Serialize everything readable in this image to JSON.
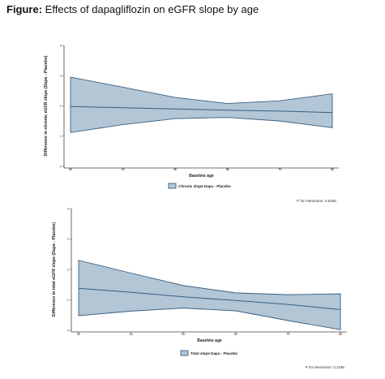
{
  "figure": {
    "title_bold": "Figure:",
    "title_rest": " Effects of dapagliflozin on eGFR slope by age"
  },
  "chart_data": [
    {
      "type": "line",
      "title": "",
      "xlabel": "Baseline age",
      "ylabel": "Difference in chronic eGFR slope (Dapa - Placebo)",
      "xlim": [
        30,
        80
      ],
      "ylim": [
        0,
        4
      ],
      "xticks": [
        "30",
        "40",
        "50",
        "60",
        "70",
        "80"
      ],
      "yticks": [
        "0",
        "1",
        "2",
        "3",
        "4"
      ],
      "grid": false,
      "legend": {
        "label": "Chronic slope Dapa - Placebo",
        "position": "bottom-center"
      },
      "annotation": "P for interaction: 0.6265",
      "series": [
        {
          "x": [
            30,
            40,
            50,
            60,
            70,
            80
          ],
          "estimate": [
            1.98,
            1.94,
            1.9,
            1.86,
            1.83,
            1.78
          ],
          "lower": [
            1.12,
            1.38,
            1.58,
            1.62,
            1.5,
            1.28
          ],
          "upper": [
            2.95,
            2.62,
            2.28,
            2.08,
            2.17,
            2.4
          ]
        }
      ]
    },
    {
      "type": "line",
      "title": "",
      "xlabel": "Baseline age",
      "ylabel": "Difference in total eGFR slope (Dapa - Placebo)",
      "xlim": [
        30,
        80
      ],
      "ylim": [
        0,
        4
      ],
      "xticks": [
        "30",
        "40",
        "50",
        "60",
        "70",
        "80"
      ],
      "yticks": [
        "0",
        "1",
        "2",
        "3",
        "4"
      ],
      "grid": false,
      "legend": {
        "label": "Total slope Dapa - Placebo",
        "position": "bottom-center"
      },
      "annotation": "P for interaction: 0.1165",
      "series": [
        {
          "x": [
            30,
            40,
            50,
            60,
            70,
            80
          ],
          "estimate": [
            1.38,
            1.25,
            1.1,
            0.98,
            0.85,
            0.68
          ],
          "lower": [
            0.48,
            0.63,
            0.73,
            0.64,
            0.32,
            0.02
          ],
          "upper": [
            2.3,
            1.88,
            1.47,
            1.23,
            1.17,
            1.2
          ]
        }
      ]
    }
  ]
}
